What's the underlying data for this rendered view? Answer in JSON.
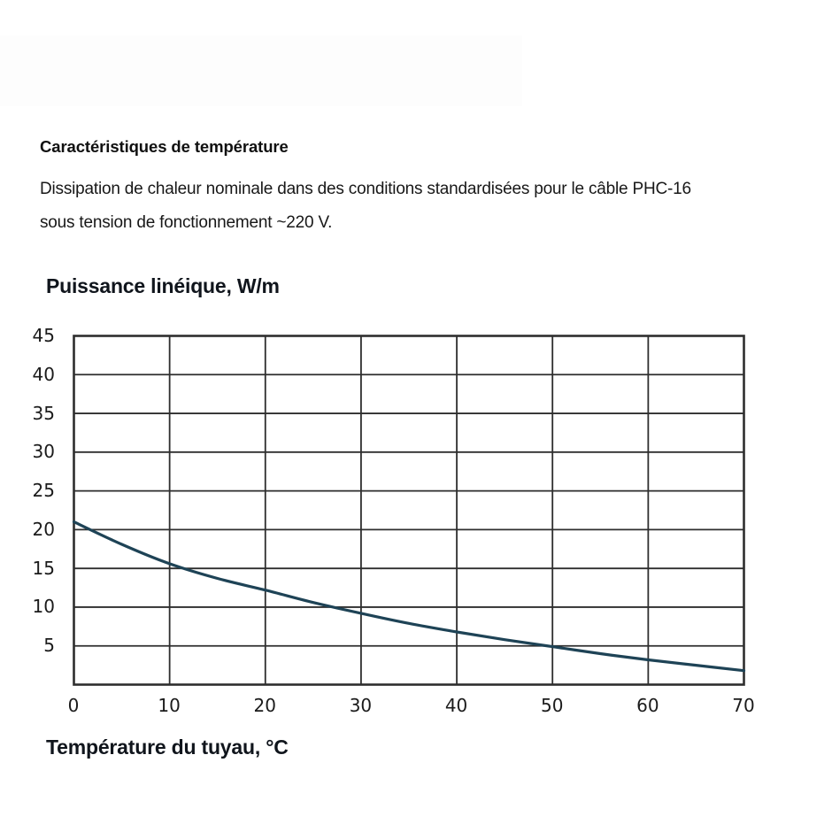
{
  "header": {
    "title": "Caractéristiques de température",
    "description_lines": [
      "Dissipation de chaleur nominale dans des conditions standardisées pour le câble PHC-16",
      "sous tension de fonctionnement ~220 V."
    ]
  },
  "chart_data": {
    "type": "line",
    "title": "Puissance linéique, W/m",
    "xlabel": "Température du tuyau, °C",
    "ylabel": "Puissance linéique, W/m",
    "x": [
      0,
      5,
      10,
      15,
      20,
      25,
      30,
      35,
      40,
      45,
      50,
      55,
      60,
      65,
      70
    ],
    "values": [
      21.0,
      18.1,
      15.6,
      13.7,
      12.2,
      10.6,
      9.2,
      7.9,
      6.8,
      5.8,
      4.9,
      4.0,
      3.2,
      2.5,
      1.8
    ],
    "xlim": [
      0,
      70
    ],
    "ylim": [
      0,
      45
    ],
    "xticks": [
      0,
      10,
      20,
      30,
      40,
      50,
      60,
      70
    ],
    "yticks": [
      45,
      40,
      35,
      30,
      25,
      20,
      15,
      10,
      5
    ],
    "grid": true,
    "legend": false,
    "colors": {
      "curve": "#1e4356",
      "grid": "#2e2e2e",
      "text": "#1b1b1b"
    }
  }
}
